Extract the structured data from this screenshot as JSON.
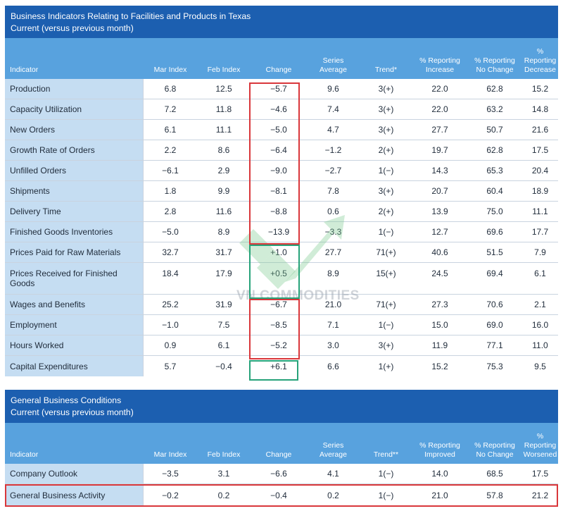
{
  "table1": {
    "title": "Business Indicators Relating to Facilities and Products in Texas",
    "subtitle": "Current (versus previous month)",
    "headers": [
      {
        "lines": [
          "Indicator"
        ]
      },
      {
        "lines": [
          "Mar Index"
        ]
      },
      {
        "lines": [
          "Feb Index"
        ]
      },
      {
        "lines": [
          "Change"
        ]
      },
      {
        "lines": [
          "Series",
          "Average"
        ]
      },
      {
        "lines": [
          "Trend*"
        ]
      },
      {
        "lines": [
          "% Reporting",
          "Increase"
        ]
      },
      {
        "lines": [
          "% Reporting",
          "No Change"
        ]
      },
      {
        "lines": [
          "%",
          "Reporting",
          "Decrease"
        ]
      }
    ],
    "rows": [
      [
        "Production",
        "6.8",
        "12.5",
        "−5.7",
        "9.6",
        "3(+)",
        "22.0",
        "62.8",
        "15.2"
      ],
      [
        "Capacity Utilization",
        "7.2",
        "11.8",
        "−4.6",
        "7.4",
        "3(+)",
        "22.0",
        "63.2",
        "14.8"
      ],
      [
        "New Orders",
        "6.1",
        "11.1",
        "−5.0",
        "4.7",
        "3(+)",
        "27.7",
        "50.7",
        "21.6"
      ],
      [
        "Growth Rate of Orders",
        "2.2",
        "8.6",
        "−6.4",
        "−1.2",
        "2(+)",
        "19.7",
        "62.8",
        "17.5"
      ],
      [
        "Unfilled Orders",
        "−6.1",
        "2.9",
        "−9.0",
        "−2.7",
        "1(−)",
        "14.3",
        "65.3",
        "20.4"
      ],
      [
        "Shipments",
        "1.8",
        "9.9",
        "−8.1",
        "7.8",
        "3(+)",
        "20.7",
        "60.4",
        "18.9"
      ],
      [
        "Delivery Time",
        "2.8",
        "11.6",
        "−8.8",
        "0.6",
        "2(+)",
        "13.9",
        "75.0",
        "11.1"
      ],
      [
        "Finished Goods Inventories",
        "−5.0",
        "8.9",
        "−13.9",
        "−3.3",
        "1(−)",
        "12.7",
        "69.6",
        "17.7"
      ],
      [
        "Prices Paid for Raw Materials",
        "32.7",
        "31.7",
        "+1.0",
        "27.7",
        "71(+)",
        "40.6",
        "51.5",
        "7.9"
      ],
      [
        "Prices Received for Finished Goods",
        "18.4",
        "17.9",
        "+0.5",
        "8.9",
        "15(+)",
        "24.5",
        "69.4",
        "6.1"
      ],
      [
        "Wages and Benefits",
        "25.2",
        "31.9",
        "−6.7",
        "21.0",
        "71(+)",
        "27.3",
        "70.6",
        "2.1"
      ],
      [
        "Employment",
        "−1.0",
        "7.5",
        "−8.5",
        "7.1",
        "1(−)",
        "15.0",
        "69.0",
        "16.0"
      ],
      [
        "Hours Worked",
        "0.9",
        "6.1",
        "−5.2",
        "3.0",
        "3(+)",
        "11.9",
        "77.1",
        "11.0"
      ],
      [
        "Capital Expenditures",
        "5.7",
        "−0.4",
        "+6.1",
        "6.6",
        "1(+)",
        "15.2",
        "75.3",
        "9.5"
      ]
    ]
  },
  "table2": {
    "title": "General Business Conditions",
    "subtitle": "Current (versus previous month)",
    "headers": [
      {
        "lines": [
          "Indicator"
        ]
      },
      {
        "lines": [
          "Mar Index"
        ]
      },
      {
        "lines": [
          "Feb Index"
        ]
      },
      {
        "lines": [
          "Change"
        ]
      },
      {
        "lines": [
          "Series",
          "Average"
        ]
      },
      {
        "lines": [
          "Trend**"
        ]
      },
      {
        "lines": [
          "% Reporting",
          "Improved"
        ]
      },
      {
        "lines": [
          "% Reporting",
          "No Change"
        ]
      },
      {
        "lines": [
          "%",
          "Reporting",
          "Worsened"
        ]
      }
    ],
    "rows": [
      [
        "Company Outlook",
        "−3.5",
        "3.1",
        "−6.6",
        "4.1",
        "1(−)",
        "14.0",
        "68.5",
        "17.5"
      ],
      [
        "General Business Activity",
        "−0.2",
        "0.2",
        "−0.4",
        "0.2",
        "1(−)",
        "21.0",
        "57.8",
        "21.2"
      ]
    ]
  },
  "watermark": {
    "text": "VN COMMODITIES"
  },
  "colors": {
    "title_bg": "#1c5fb0",
    "header_bg": "#58a2de",
    "first_col_bg": "#c5ddf2",
    "red_box": "#d9373b",
    "green_box": "#27a37a"
  }
}
